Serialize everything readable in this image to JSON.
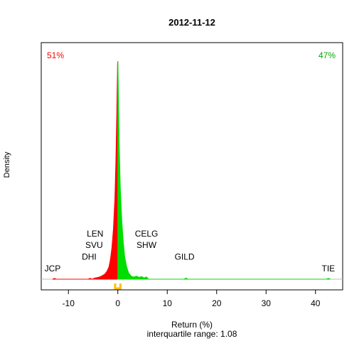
{
  "chart_data": {
    "type": "area",
    "title": "2012-11-12",
    "xlabel": "Return (%)",
    "ylabel": "Density",
    "subtitle": "interquartile range: 1.08",
    "xlim": [
      -15.5,
      45.5
    ],
    "x_ticks": [
      -10,
      0,
      10,
      20,
      30,
      40
    ],
    "negative_share": "51%",
    "positive_share": "47%",
    "colors": {
      "negative": "#ff0000",
      "positive": "#00dd00",
      "quartile_marker": "#ffc000",
      "baseline": "#bebebe",
      "axis": "#000000"
    },
    "density": {
      "x": [
        -13.2,
        -12.8,
        -12.5,
        -6.0,
        -5.6,
        -5.2,
        -4.6,
        -4.0,
        -3.5,
        -3.0,
        -2.6,
        -2.2,
        -1.8,
        -1.5,
        -1.2,
        -0.9,
        -0.6,
        -0.4,
        -0.2,
        -0.05,
        0.0,
        0.05,
        0.25,
        0.5,
        0.8,
        1.1,
        1.4,
        1.8,
        2.2,
        2.8,
        3.3,
        3.8,
        4.3,
        4.8,
        5.3,
        5.8,
        6.2,
        13.4,
        13.8,
        14.2,
        42.2,
        42.6,
        43.0
      ],
      "y": [
        0,
        0.02,
        0,
        0,
        0.02,
        0,
        0.03,
        0.04,
        0.06,
        0.09,
        0.12,
        0.18,
        0.28,
        0.45,
        0.72,
        1.15,
        1.85,
        2.7,
        3.8,
        4.95,
        5.0,
        4.7,
        3.2,
        2.1,
        1.35,
        0.85,
        0.5,
        0.28,
        0.14,
        0.06,
        0.05,
        0.07,
        0.04,
        0.06,
        0.03,
        0.05,
        0,
        0,
        0.025,
        0,
        0,
        0.02,
        0
      ],
      "ylim": [
        0,
        5.15
      ]
    },
    "quartiles": [
      -0.55,
      0.53
    ],
    "labels": [
      {
        "text": "JCP",
        "x": -13.2,
        "y": 0.18
      },
      {
        "text": "DHI",
        "x": -5.8,
        "y": 0.45
      },
      {
        "text": "SVU",
        "x": -4.8,
        "y": 0.72
      },
      {
        "text": "LEN",
        "x": -4.6,
        "y": 0.98
      },
      {
        "text": "CELG",
        "x": 5.8,
        "y": 0.98
      },
      {
        "text": "SHW",
        "x": 5.8,
        "y": 0.72
      },
      {
        "text": "GILD",
        "x": 13.5,
        "y": 0.45
      },
      {
        "text": "TIE",
        "x": 42.6,
        "y": 0.18
      }
    ]
  }
}
